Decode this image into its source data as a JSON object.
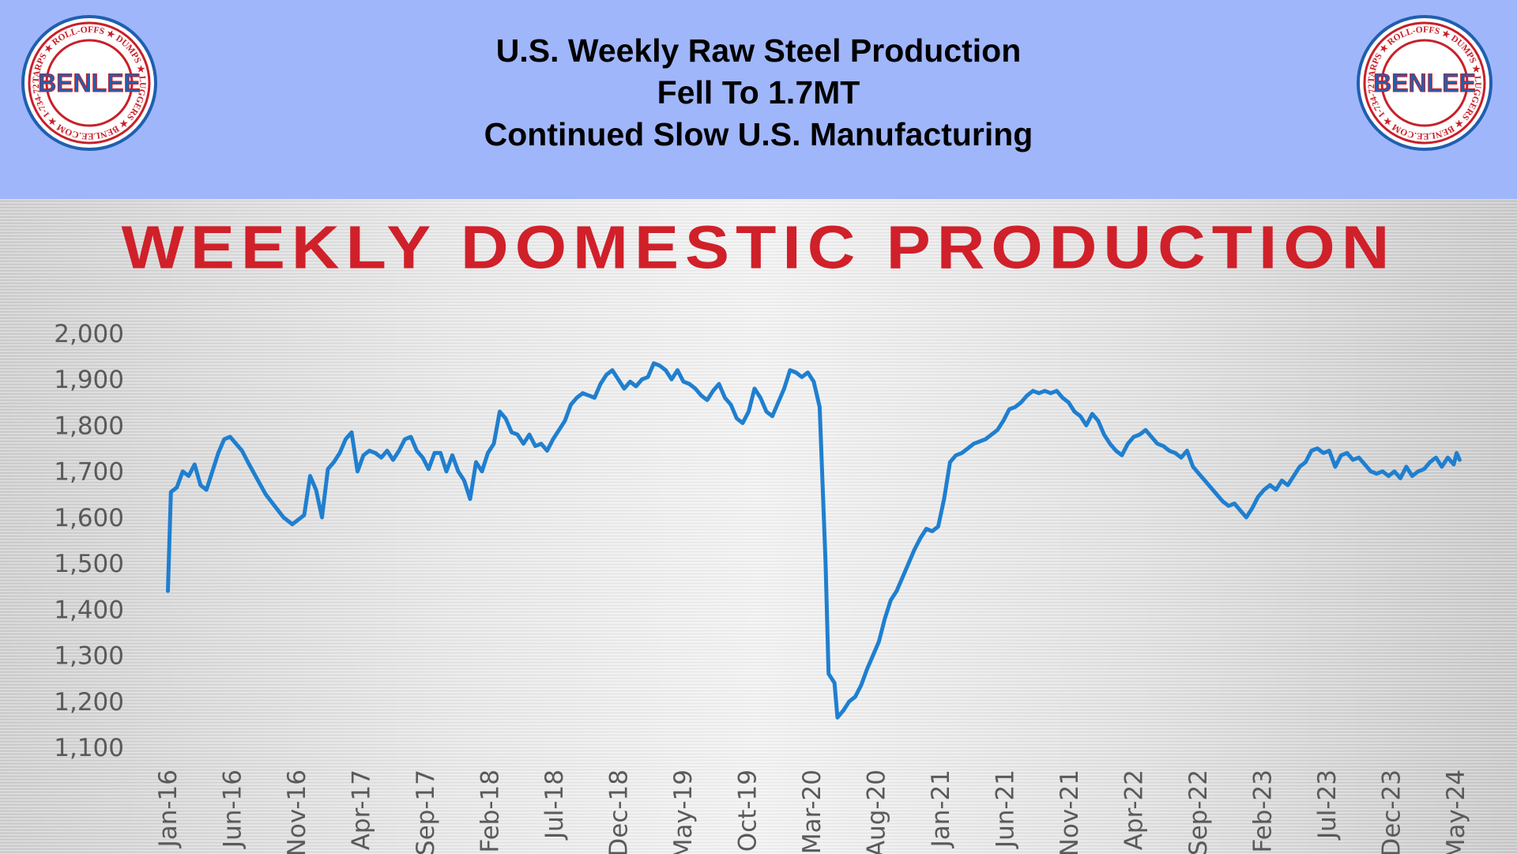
{
  "header": {
    "line1": "U.S. Weekly Raw Steel Production",
    "line2": "Fell To 1.7MT",
    "line3": "Continued Slow U.S. Manufacturing",
    "background": "#a0b6fb"
  },
  "logo": {
    "brand": "BENLEE",
    "ring_text": "TARPS ★ ROLL-OFFS ★ DUMPS ★ LUGGERS ★ BENLEE.COM ★ 1-734-722-8100 ★ PARTS ★",
    "brand_color": "#1f5fb0",
    "ring_color": "#c8202a"
  },
  "chart_data": {
    "type": "line",
    "title": "WEEKLY DOMESTIC PRODUCTION",
    "title_color": "#d0202a",
    "line_color": "#1f7fcf",
    "xlabel": "",
    "ylabel": "",
    "ylim": [
      1100,
      2000
    ],
    "yticks": [
      "2,000",
      "1,900",
      "1,800",
      "1,700",
      "1,600",
      "1,500",
      "1,400",
      "1,300",
      "1,200",
      "1,100"
    ],
    "xticks": [
      "Jan-16",
      "Jun-16",
      "Nov-16",
      "Apr-17",
      "Sep-17",
      "Feb-18",
      "Jul-18",
      "Dec-18",
      "May-19",
      "Oct-19",
      "Mar-20",
      "Aug-20",
      "Jan-21",
      "Jun-21",
      "Nov-21",
      "Apr-22",
      "Sep-22",
      "Feb-23",
      "Jul-23",
      "Dec-23",
      "May-24"
    ],
    "grid": false,
    "series": [
      {
        "points": [
          [
            "2016-01-02",
            1440
          ],
          [
            "2016-01-09",
            1655
          ],
          [
            "2016-01-23",
            1665
          ],
          [
            "2016-02-06",
            1700
          ],
          [
            "2016-02-20",
            1690
          ],
          [
            "2016-03-05",
            1715
          ],
          [
            "2016-03-19",
            1670
          ],
          [
            "2016-04-02",
            1660
          ],
          [
            "2016-04-16",
            1700
          ],
          [
            "2016-04-30",
            1740
          ],
          [
            "2016-05-14",
            1770
          ],
          [
            "2016-05-28",
            1775
          ],
          [
            "2016-06-11",
            1760
          ],
          [
            "2016-06-25",
            1745
          ],
          [
            "2016-07-09",
            1720
          ],
          [
            "2016-07-30",
            1685
          ],
          [
            "2016-08-20",
            1650
          ],
          [
            "2016-09-10",
            1625
          ],
          [
            "2016-10-01",
            1600
          ],
          [
            "2016-10-22",
            1585
          ],
          [
            "2016-11-05",
            1595
          ],
          [
            "2016-11-19",
            1605
          ],
          [
            "2016-12-03",
            1690
          ],
          [
            "2016-12-17",
            1660
          ],
          [
            "2016-12-31",
            1600
          ],
          [
            "2017-01-14",
            1705
          ],
          [
            "2017-01-28",
            1720
          ],
          [
            "2017-02-11",
            1740
          ],
          [
            "2017-02-25",
            1770
          ],
          [
            "2017-03-11",
            1785
          ],
          [
            "2017-03-25",
            1700
          ],
          [
            "2017-04-08",
            1735
          ],
          [
            "2017-04-22",
            1745
          ],
          [
            "2017-05-06",
            1740
          ],
          [
            "2017-05-20",
            1730
          ],
          [
            "2017-06-03",
            1745
          ],
          [
            "2017-06-17",
            1725
          ],
          [
            "2017-07-01",
            1745
          ],
          [
            "2017-07-15",
            1770
          ],
          [
            "2017-07-29",
            1775
          ],
          [
            "2017-08-12",
            1745
          ],
          [
            "2017-08-26",
            1730
          ],
          [
            "2017-09-09",
            1705
          ],
          [
            "2017-09-23",
            1740
          ],
          [
            "2017-10-07",
            1740
          ],
          [
            "2017-10-21",
            1700
          ],
          [
            "2017-11-04",
            1735
          ],
          [
            "2017-11-18",
            1700
          ],
          [
            "2017-12-02",
            1680
          ],
          [
            "2017-12-16",
            1640
          ],
          [
            "2017-12-30",
            1720
          ],
          [
            "2018-01-13",
            1700
          ],
          [
            "2018-01-27",
            1740
          ],
          [
            "2018-02-10",
            1760
          ],
          [
            "2018-02-24",
            1830
          ],
          [
            "2018-03-10",
            1815
          ],
          [
            "2018-03-24",
            1785
          ],
          [
            "2018-04-07",
            1780
          ],
          [
            "2018-04-21",
            1760
          ],
          [
            "2018-05-05",
            1780
          ],
          [
            "2018-05-19",
            1755
          ],
          [
            "2018-06-02",
            1760
          ],
          [
            "2018-06-16",
            1745
          ],
          [
            "2018-06-30",
            1770
          ],
          [
            "2018-07-14",
            1790
          ],
          [
            "2018-07-28",
            1810
          ],
          [
            "2018-08-11",
            1845
          ],
          [
            "2018-08-25",
            1860
          ],
          [
            "2018-09-08",
            1870
          ],
          [
            "2018-09-22",
            1865
          ],
          [
            "2018-10-06",
            1860
          ],
          [
            "2018-10-20",
            1890
          ],
          [
            "2018-11-03",
            1910
          ],
          [
            "2018-11-17",
            1920
          ],
          [
            "2018-12-01",
            1900
          ],
          [
            "2018-12-15",
            1880
          ],
          [
            "2018-12-29",
            1895
          ],
          [
            "2019-01-12",
            1885
          ],
          [
            "2019-01-26",
            1900
          ],
          [
            "2019-02-09",
            1905
          ],
          [
            "2019-02-23",
            1935
          ],
          [
            "2019-03-09",
            1930
          ],
          [
            "2019-03-23",
            1920
          ],
          [
            "2019-04-06",
            1900
          ],
          [
            "2019-04-20",
            1920
          ],
          [
            "2019-05-04",
            1895
          ],
          [
            "2019-05-18",
            1890
          ],
          [
            "2019-06-01",
            1880
          ],
          [
            "2019-06-15",
            1865
          ],
          [
            "2019-06-29",
            1855
          ],
          [
            "2019-07-13",
            1875
          ],
          [
            "2019-07-27",
            1890
          ],
          [
            "2019-08-10",
            1860
          ],
          [
            "2019-08-24",
            1845
          ],
          [
            "2019-09-07",
            1815
          ],
          [
            "2019-09-21",
            1805
          ],
          [
            "2019-10-05",
            1830
          ],
          [
            "2019-10-19",
            1880
          ],
          [
            "2019-11-02",
            1860
          ],
          [
            "2019-11-16",
            1830
          ],
          [
            "2019-11-30",
            1820
          ],
          [
            "2019-12-14",
            1850
          ],
          [
            "2019-12-28",
            1880
          ],
          [
            "2020-01-11",
            1920
          ],
          [
            "2020-01-25",
            1915
          ],
          [
            "2020-02-08",
            1905
          ],
          [
            "2020-02-22",
            1915
          ],
          [
            "2020-03-07",
            1895
          ],
          [
            "2020-03-21",
            1840
          ],
          [
            "2020-04-04",
            1500
          ],
          [
            "2020-04-11",
            1260
          ],
          [
            "2020-04-25",
            1240
          ],
          [
            "2020-05-02",
            1165
          ],
          [
            "2020-05-16",
            1180
          ],
          [
            "2020-05-30",
            1200
          ],
          [
            "2020-06-13",
            1210
          ],
          [
            "2020-06-27",
            1235
          ],
          [
            "2020-07-11",
            1270
          ],
          [
            "2020-07-25",
            1300
          ],
          [
            "2020-08-08",
            1330
          ],
          [
            "2020-08-22",
            1380
          ],
          [
            "2020-09-05",
            1420
          ],
          [
            "2020-09-19",
            1440
          ],
          [
            "2020-10-03",
            1470
          ],
          [
            "2020-10-17",
            1500
          ],
          [
            "2020-10-31",
            1530
          ],
          [
            "2020-11-14",
            1555
          ],
          [
            "2020-11-28",
            1575
          ],
          [
            "2020-12-12",
            1570
          ],
          [
            "2020-12-26",
            1580
          ],
          [
            "2021-01-09",
            1640
          ],
          [
            "2021-01-23",
            1720
          ],
          [
            "2021-02-06",
            1735
          ],
          [
            "2021-02-20",
            1740
          ],
          [
            "2021-03-06",
            1750
          ],
          [
            "2021-03-20",
            1760
          ],
          [
            "2021-04-03",
            1765
          ],
          [
            "2021-04-17",
            1770
          ],
          [
            "2021-05-01",
            1780
          ],
          [
            "2021-05-15",
            1790
          ],
          [
            "2021-05-29",
            1810
          ],
          [
            "2021-06-12",
            1835
          ],
          [
            "2021-06-26",
            1840
          ],
          [
            "2021-07-10",
            1850
          ],
          [
            "2021-07-24",
            1865
          ],
          [
            "2021-08-07",
            1875
          ],
          [
            "2021-08-21",
            1870
          ],
          [
            "2021-09-04",
            1875
          ],
          [
            "2021-09-18",
            1870
          ],
          [
            "2021-10-02",
            1875
          ],
          [
            "2021-10-16",
            1860
          ],
          [
            "2021-10-30",
            1850
          ],
          [
            "2021-11-13",
            1830
          ],
          [
            "2021-11-27",
            1820
          ],
          [
            "2021-12-11",
            1800
          ],
          [
            "2021-12-25",
            1825
          ],
          [
            "2022-01-08",
            1810
          ],
          [
            "2022-01-22",
            1780
          ],
          [
            "2022-02-05",
            1760
          ],
          [
            "2022-02-19",
            1745
          ],
          [
            "2022-03-05",
            1735
          ],
          [
            "2022-03-19",
            1760
          ],
          [
            "2022-04-02",
            1775
          ],
          [
            "2022-04-16",
            1780
          ],
          [
            "2022-04-30",
            1790
          ],
          [
            "2022-05-14",
            1775
          ],
          [
            "2022-05-28",
            1760
          ],
          [
            "2022-06-11",
            1755
          ],
          [
            "2022-06-25",
            1745
          ],
          [
            "2022-07-09",
            1740
          ],
          [
            "2022-07-23",
            1730
          ],
          [
            "2022-08-06",
            1745
          ],
          [
            "2022-08-20",
            1710
          ],
          [
            "2022-09-03",
            1695
          ],
          [
            "2022-09-17",
            1680
          ],
          [
            "2022-10-01",
            1665
          ],
          [
            "2022-10-15",
            1650
          ],
          [
            "2022-10-29",
            1635
          ],
          [
            "2022-11-12",
            1625
          ],
          [
            "2022-11-26",
            1630
          ],
          [
            "2022-12-10",
            1615
          ],
          [
            "2022-12-24",
            1600
          ],
          [
            "2023-01-07",
            1620
          ],
          [
            "2023-01-21",
            1645
          ],
          [
            "2023-02-04",
            1660
          ],
          [
            "2023-02-18",
            1670
          ],
          [
            "2023-03-04",
            1660
          ],
          [
            "2023-03-18",
            1680
          ],
          [
            "2023-04-01",
            1670
          ],
          [
            "2023-04-15",
            1690
          ],
          [
            "2023-04-29",
            1710
          ],
          [
            "2023-05-13",
            1720
          ],
          [
            "2023-05-27",
            1745
          ],
          [
            "2023-06-10",
            1750
          ],
          [
            "2023-06-24",
            1740
          ],
          [
            "2023-07-08",
            1745
          ],
          [
            "2023-07-22",
            1710
          ],
          [
            "2023-08-05",
            1735
          ],
          [
            "2023-08-19",
            1740
          ],
          [
            "2023-09-02",
            1725
          ],
          [
            "2023-09-16",
            1730
          ],
          [
            "2023-09-30",
            1715
          ],
          [
            "2023-10-14",
            1700
          ],
          [
            "2023-10-28",
            1695
          ],
          [
            "2023-11-11",
            1700
          ],
          [
            "2023-11-25",
            1690
          ],
          [
            "2023-12-09",
            1700
          ],
          [
            "2023-12-23",
            1685
          ],
          [
            "2024-01-06",
            1710
          ],
          [
            "2024-01-20",
            1690
          ],
          [
            "2024-02-03",
            1700
          ],
          [
            "2024-02-17",
            1705
          ],
          [
            "2024-03-02",
            1720
          ],
          [
            "2024-03-16",
            1730
          ],
          [
            "2024-03-30",
            1710
          ],
          [
            "2024-04-13",
            1730
          ],
          [
            "2024-04-27",
            1715
          ],
          [
            "2024-05-04",
            1740
          ],
          [
            "2024-05-11",
            1725
          ]
        ]
      }
    ]
  }
}
